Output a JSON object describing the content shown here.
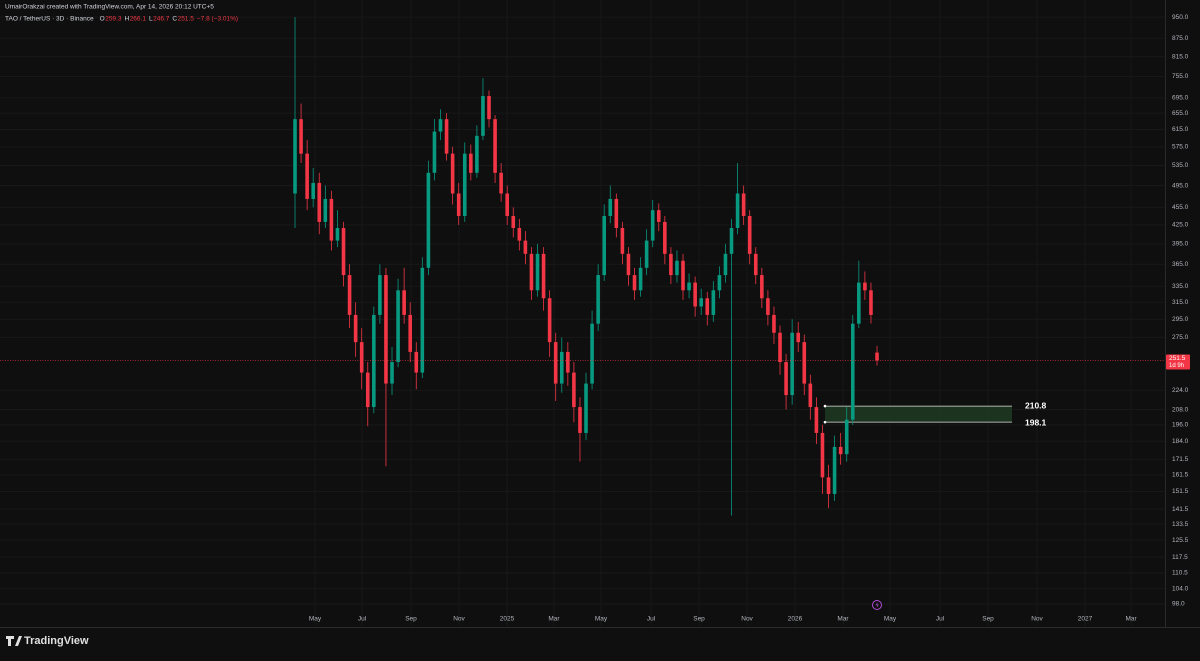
{
  "header": {
    "credit": "UmairOrakzai created with TradingView.com, Apr 14, 2026 20:12 UTC+5",
    "brand": "TradingView"
  },
  "chart_data": {
    "type": "candlestick",
    "symbol": "TAO / TetherUS · 3D · Binance",
    "ohlc_labels": [
      "O",
      "H",
      "L",
      "C"
    ],
    "change": "−7.8 (−3.01%)",
    "countdown": "1d 9h",
    "up_color": "#089981",
    "down_color": "#f23645",
    "log_scale": true,
    "grid": true,
    "open": [
      480,
      640,
      560,
      470,
      500,
      430,
      470,
      400,
      420,
      350,
      300,
      270,
      240,
      210,
      300,
      350,
      230,
      250,
      330,
      300,
      260,
      240,
      360,
      520,
      610,
      640,
      560,
      480,
      440,
      560,
      520,
      600,
      700,
      640,
      520,
      480,
      440,
      420,
      400,
      380,
      330,
      380,
      320,
      270,
      230,
      260,
      240,
      210,
      190,
      230,
      290,
      350,
      440,
      470,
      420,
      380,
      350,
      330,
      360,
      400,
      450,
      430,
      380,
      350,
      370,
      330,
      340,
      310,
      320,
      300,
      330,
      350,
      380,
      420,
      480,
      440,
      380,
      350,
      320,
      300,
      280,
      250,
      220,
      280,
      270,
      230,
      210,
      190,
      160,
      150,
      180,
      175,
      200,
      290,
      340,
      330,
      259.3
    ],
    "high": [
      950,
      680,
      590,
      530,
      520,
      495,
      485,
      450,
      430,
      365,
      315,
      285,
      250,
      310,
      365,
      360,
      265,
      345,
      360,
      315,
      270,
      375,
      545,
      640,
      665,
      655,
      575,
      500,
      585,
      580,
      625,
      750,
      715,
      650,
      540,
      495,
      455,
      435,
      415,
      390,
      395,
      390,
      330,
      280,
      275,
      270,
      250,
      218,
      240,
      305,
      365,
      460,
      495,
      480,
      430,
      390,
      360,
      375,
      418,
      468,
      462,
      440,
      390,
      385,
      380,
      352,
      348,
      332,
      328,
      342,
      362,
      395,
      435,
      540,
      495,
      450,
      390,
      360,
      330,
      310,
      288,
      258,
      295,
      292,
      278,
      238,
      218,
      196,
      168,
      188,
      190,
      210,
      300,
      370,
      355,
      340,
      266.1
    ],
    "low": [
      420,
      540,
      450,
      455,
      410,
      420,
      385,
      390,
      335,
      285,
      255,
      225,
      195,
      205,
      290,
      167,
      220,
      245,
      290,
      250,
      225,
      235,
      350,
      505,
      590,
      545,
      460,
      425,
      430,
      505,
      510,
      590,
      620,
      500,
      465,
      425,
      405,
      385,
      365,
      318,
      322,
      305,
      255,
      215,
      222,
      228,
      198,
      170,
      185,
      225,
      282,
      342,
      428,
      405,
      365,
      336,
      318,
      322,
      350,
      390,
      415,
      365,
      338,
      340,
      318,
      320,
      298,
      300,
      288,
      292,
      320,
      340,
      138,
      410,
      425,
      365,
      338,
      308,
      288,
      268,
      238,
      208,
      212,
      260,
      220,
      200,
      182,
      150,
      142,
      146,
      168,
      170,
      196,
      285,
      318,
      290,
      246.7
    ],
    "close": [
      640,
      560,
      470,
      500,
      430,
      470,
      400,
      420,
      350,
      300,
      270,
      240,
      210,
      300,
      350,
      230,
      250,
      330,
      300,
      260,
      240,
      360,
      520,
      610,
      640,
      560,
      480,
      440,
      560,
      520,
      600,
      700,
      640,
      520,
      480,
      440,
      420,
      400,
      380,
      330,
      380,
      320,
      270,
      230,
      260,
      240,
      210,
      190,
      230,
      290,
      350,
      440,
      470,
      420,
      380,
      350,
      330,
      360,
      400,
      450,
      430,
      380,
      350,
      370,
      330,
      340,
      310,
      320,
      300,
      330,
      350,
      380,
      420,
      480,
      440,
      380,
      350,
      320,
      300,
      280,
      250,
      220,
      280,
      270,
      230,
      210,
      190,
      160,
      150,
      180,
      175,
      200,
      290,
      340,
      330,
      300,
      251.5
    ],
    "ylim": [
      90,
      1015
    ],
    "yticks": [
      {
        "value": 950,
        "label": "950.0"
      },
      {
        "value": 875,
        "label": "875.0"
      },
      {
        "value": 815,
        "label": "815.0"
      },
      {
        "value": 755,
        "label": "755.0"
      },
      {
        "value": 695,
        "label": "695.0"
      },
      {
        "value": 655,
        "label": "655.0"
      },
      {
        "value": 615,
        "label": "615.0"
      },
      {
        "value": 575,
        "label": "575.0"
      },
      {
        "value": 535,
        "label": "535.0"
      },
      {
        "value": 495,
        "label": "495.0"
      },
      {
        "value": 455,
        "label": "455.0"
      },
      {
        "value": 425,
        "label": "425.0"
      },
      {
        "value": 395,
        "label": "395.0"
      },
      {
        "value": 365,
        "label": "365.0"
      },
      {
        "value": 335,
        "label": "335.0"
      },
      {
        "value": 315,
        "label": "315.0"
      },
      {
        "value": 295,
        "label": "295.0"
      },
      {
        "value": 275,
        "label": "275.0"
      },
      {
        "value": 224,
        "label": "224.0"
      },
      {
        "value": 208,
        "label": "208.0"
      },
      {
        "value": 196,
        "label": "196.0"
      },
      {
        "value": 184,
        "label": "184.0"
      },
      {
        "value": 171.5,
        "label": "171.5"
      },
      {
        "value": 161.5,
        "label": "161.5"
      },
      {
        "value": 151.5,
        "label": "151.5"
      },
      {
        "value": 141.5,
        "label": "141.5"
      },
      {
        "value": 133.5,
        "label": "133.5"
      },
      {
        "value": 125.5,
        "label": "125.5"
      },
      {
        "value": 117.5,
        "label": "117.5"
      },
      {
        "value": 110.5,
        "label": "110.5"
      },
      {
        "value": 104,
        "label": "104.0"
      },
      {
        "value": 98,
        "label": "98.0"
      }
    ],
    "xlim": [
      -48.66,
      143.5
    ],
    "xticks": [
      {
        "value": 3.3,
        "label": "May"
      },
      {
        "value": 11.05,
        "label": "Jul"
      },
      {
        "value": 19.13,
        "label": "Sep"
      },
      {
        "value": 27.05,
        "label": "Nov"
      },
      {
        "value": 34.97,
        "label": "2025"
      },
      {
        "value": 42.72,
        "label": "Mar"
      },
      {
        "value": 50.47,
        "label": "May"
      },
      {
        "value": 58.72,
        "label": "Jul"
      },
      {
        "value": 66.64,
        "label": "Sep"
      },
      {
        "value": 74.56,
        "label": "Nov"
      },
      {
        "value": 82.47,
        "label": "2026"
      },
      {
        "value": 90.39,
        "label": "Mar"
      },
      {
        "value": 98.14,
        "label": "May"
      },
      {
        "value": 106.39,
        "label": "Jul"
      },
      {
        "value": 114.31,
        "label": "Sep"
      },
      {
        "value": 122.39,
        "label": "Nov"
      },
      {
        "value": 130.31,
        "label": "2027"
      },
      {
        "value": 137.9,
        "label": "Mar"
      }
    ],
    "zone": {
      "top": 210.8,
      "bottom": 198.1,
      "color": "#1e3a22"
    }
  }
}
